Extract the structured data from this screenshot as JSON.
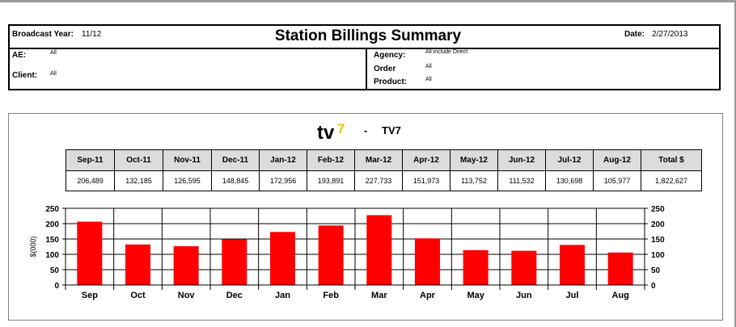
{
  "header": {
    "broadcast_year_label": "Broadcast Year:",
    "broadcast_year": "11/12",
    "title": "Station Billings Summary",
    "date_label": "Date:",
    "date": "2/27/2013",
    "ae_label": "AE:",
    "ae_value": "All",
    "client_label": "Client:",
    "client_value": "All",
    "agency_label": "Agency:",
    "agency_value": "All include Direct",
    "order_label": "Order",
    "order_value": "All",
    "product_label": "Product:",
    "product_value": "All"
  },
  "station": {
    "logo_text": "tv",
    "logo_mark": "7",
    "dash": "-",
    "name": "TV7"
  },
  "table": {
    "headers": [
      "Sep-11",
      "Oct-11",
      "Nov-11",
      "Dec-11",
      "Jan-12",
      "Feb-12",
      "Mar-12",
      "Apr-12",
      "May-12",
      "Jun-12",
      "Jul-12",
      "Aug-12",
      "Total $"
    ],
    "values": [
      "206,489",
      "132,185",
      "126,595",
      "148,845",
      "172,956",
      "193,891",
      "227,733",
      "151,973",
      "113,752",
      "111,532",
      "130,698",
      "105,977",
      "1,822,627"
    ]
  },
  "colors": {
    "bar": "#ff0000",
    "header_fill": "#dcdcdc",
    "logo_mark": "#f2c400"
  },
  "chart_data": {
    "type": "bar",
    "categories": [
      "Sep",
      "Oct",
      "Nov",
      "Dec",
      "Jan",
      "Feb",
      "Mar",
      "Apr",
      "May",
      "Jun",
      "Jul",
      "Aug"
    ],
    "values": [
      206.489,
      132.185,
      126.595,
      148.845,
      172.956,
      193.891,
      227.733,
      151.973,
      113.752,
      111.532,
      130.698,
      105.977
    ],
    "ylabel": "$(000)",
    "ylim": [
      0,
      250
    ],
    "yticks": [
      0,
      50,
      100,
      150,
      200,
      250
    ],
    "grid": true,
    "right_axis": true
  }
}
